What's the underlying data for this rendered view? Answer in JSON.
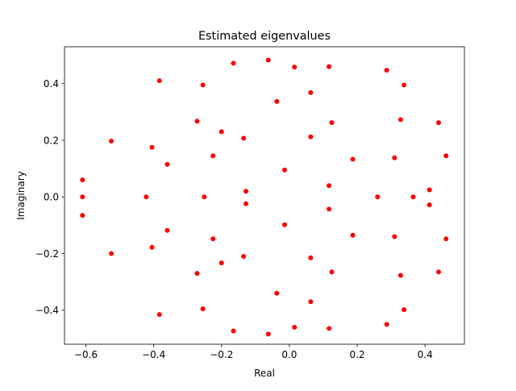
{
  "chart_data": {
    "type": "scatter",
    "title": "Estimated eigenvalues",
    "xlabel": "Real",
    "ylabel": "Imaginary",
    "xlim": [
      -0.663,
      0.516
    ],
    "ylim": [
      -0.52,
      0.53
    ],
    "xticks": [
      -0.6,
      -0.4,
      -0.2,
      0.0,
      0.2,
      0.4
    ],
    "xtick_labels": [
      "−0.6",
      "−0.4",
      "−0.2",
      "0.0",
      "0.2",
      "0.4"
    ],
    "yticks": [
      -0.4,
      -0.2,
      0.0,
      0.2,
      0.4
    ],
    "ytick_labels": [
      "−0.4",
      "−0.2",
      "0.0",
      "0.2",
      "0.4"
    ],
    "grid": false,
    "marker_color": "#ff0000",
    "series": [
      {
        "x": [
          -0.61,
          -0.61,
          -0.61,
          -0.525,
          -0.525,
          -0.422,
          -0.405,
          -0.405,
          -0.383,
          -0.383,
          -0.36,
          -0.36,
          -0.272,
          -0.272,
          -0.255,
          -0.255,
          -0.251,
          -0.225,
          -0.225,
          -0.2,
          -0.2,
          -0.165,
          -0.165,
          -0.135,
          -0.135,
          -0.128,
          -0.128,
          -0.062,
          -0.062,
          -0.037,
          -0.037,
          -0.014,
          -0.014,
          0.015,
          0.015,
          0.063,
          0.063,
          0.063,
          0.063,
          0.117,
          0.117,
          0.117,
          0.117,
          0.125,
          0.125,
          0.187,
          0.187,
          0.26,
          0.287,
          0.287,
          0.31,
          0.31,
          0.328,
          0.328,
          0.338,
          0.338,
          0.365,
          0.413,
          0.413,
          0.44,
          0.44,
          0.462,
          0.462
        ],
        "y": [
          0.06,
          0.0,
          -0.065,
          0.197,
          -0.2,
          0.0,
          0.175,
          -0.178,
          0.41,
          -0.415,
          0.115,
          -0.118,
          0.267,
          -0.27,
          0.395,
          -0.395,
          0.0,
          0.145,
          -0.148,
          0.23,
          -0.233,
          0.472,
          -0.473,
          0.207,
          -0.21,
          0.02,
          -0.024,
          0.483,
          -0.484,
          0.337,
          -0.34,
          0.095,
          -0.098,
          0.458,
          -0.46,
          0.368,
          0.212,
          -0.215,
          -0.37,
          0.46,
          0.04,
          -0.043,
          -0.464,
          0.262,
          -0.265,
          0.133,
          -0.135,
          0.0,
          0.447,
          -0.45,
          0.138,
          -0.14,
          0.273,
          -0.277,
          0.395,
          -0.398,
          0.0,
          0.025,
          -0.028,
          0.262,
          -0.265,
          0.145,
          -0.148
        ]
      }
    ]
  }
}
